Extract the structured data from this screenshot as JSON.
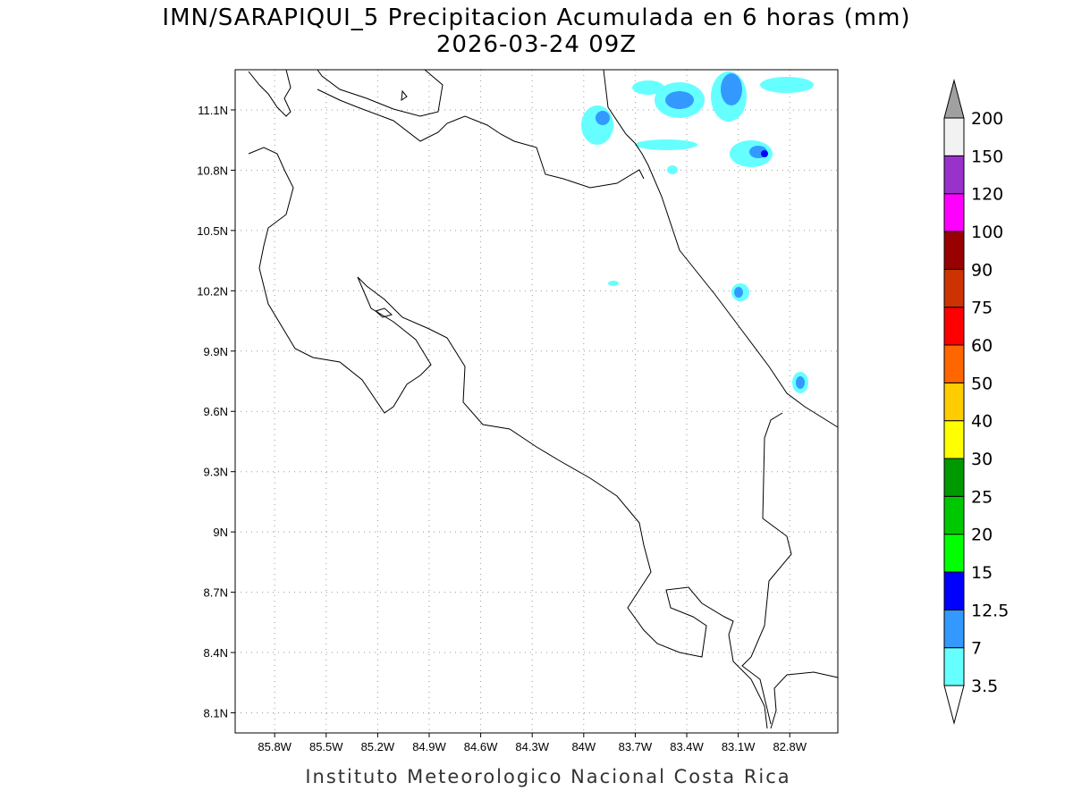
{
  "title": "IMN/SARAPIQUI_5 Precipitacion Acumulada en 6 horas (mm)",
  "subtitle": "2026-03-24 09Z",
  "footer": "Instituto Meteorologico Nacional Costa Rica",
  "map": {
    "xlim": [
      -86.03,
      -82.52
    ],
    "ylim": [
      8.0,
      11.3
    ],
    "grid": true,
    "xticks": [
      {
        "value": -85.8,
        "label": "85.8W"
      },
      {
        "value": -85.5,
        "label": "85.5W"
      },
      {
        "value": -85.2,
        "label": "85.2W"
      },
      {
        "value": -84.9,
        "label": "84.9W"
      },
      {
        "value": -84.6,
        "label": "84.6W"
      },
      {
        "value": -84.3,
        "label": "84.3W"
      },
      {
        "value": -84.0,
        "label": "84W"
      },
      {
        "value": -83.7,
        "label": "83.7W"
      },
      {
        "value": -83.4,
        "label": "83.4W"
      },
      {
        "value": -83.1,
        "label": "83.1W"
      },
      {
        "value": -82.8,
        "label": "82.8W"
      }
    ],
    "yticks": [
      {
        "value": 8.1,
        "label": "8.1N"
      },
      {
        "value": 8.4,
        "label": "8.4N"
      },
      {
        "value": 8.7,
        "label": "8.7N"
      },
      {
        "value": 9.0,
        "label": "9N"
      },
      {
        "value": 9.3,
        "label": "9.3N"
      },
      {
        "value": 9.6,
        "label": "9.6N"
      },
      {
        "value": 9.9,
        "label": "9.9N"
      },
      {
        "value": 10.2,
        "label": "10.2N"
      },
      {
        "value": 10.5,
        "label": "10.5N"
      },
      {
        "value": 10.8,
        "label": "10.8N"
      },
      {
        "value": 11.1,
        "label": "11.1N"
      }
    ]
  },
  "colorbar": {
    "levels": [
      3.5,
      7,
      12.5,
      15,
      20,
      25,
      30,
      40,
      50,
      60,
      75,
      90,
      100,
      120,
      150,
      200
    ],
    "colors": [
      "#66ffff",
      "#3399ff",
      "#0000ff",
      "#00ff00",
      "#00c800",
      "#009900",
      "#ffff00",
      "#ffcc00",
      "#ff6600",
      "#ff0000",
      "#cc3300",
      "#990000",
      "#ff00ff",
      "#9932cc",
      "#f2f2f2"
    ],
    "under_color": "#ffffff",
    "over_color": "#a0a0a0"
  }
}
